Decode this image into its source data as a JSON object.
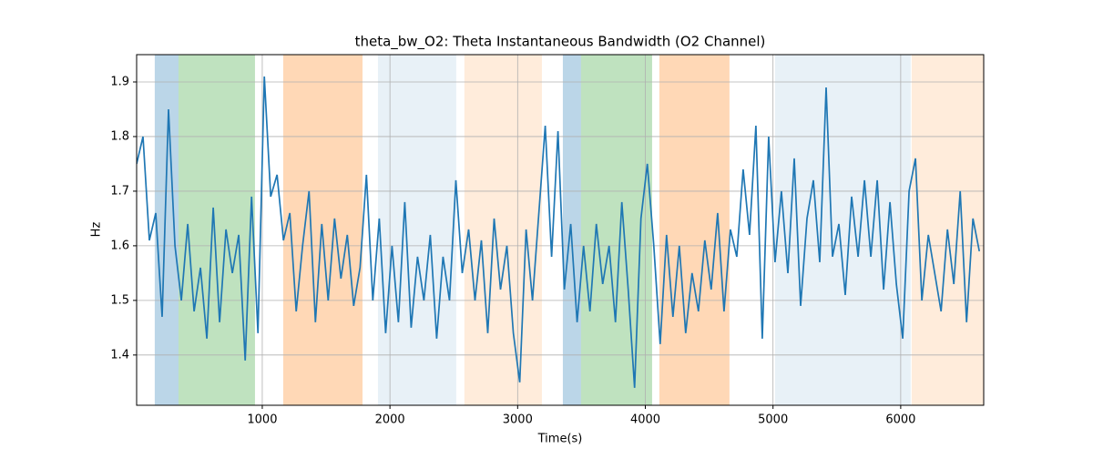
{
  "chart_data": {
    "type": "line",
    "title": "theta_bw_O2: Theta Instantaneous Bandwidth (O2 Channel)",
    "xlabel": "Time(s)",
    "ylabel": "Hz",
    "color": "#1f77b4",
    "x": [
      16,
      66,
      116,
      166,
      216,
      266,
      316,
      366,
      416,
      466,
      516,
      566,
      616,
      666,
      716,
      766,
      816,
      866,
      916,
      966,
      1016,
      1066,
      1116,
      1166,
      1216,
      1266,
      1316,
      1366,
      1416,
      1466,
      1516,
      1566,
      1616,
      1666,
      1716,
      1766,
      1816,
      1866,
      1916,
      1966,
      2016,
      2066,
      2116,
      2166,
      2216,
      2266,
      2316,
      2366,
      2416,
      2466,
      2516,
      2566,
      2616,
      2666,
      2716,
      2766,
      2816,
      2866,
      2916,
      2966,
      3016,
      3066,
      3116,
      3166,
      3216,
      3266,
      3316,
      3366,
      3416,
      3466,
      3516,
      3566,
      3616,
      3666,
      3716,
      3766,
      3816,
      3866,
      3916,
      3966,
      4016,
      4066,
      4116,
      4166,
      4216,
      4266,
      4316,
      4366,
      4416,
      4466,
      4516,
      4566,
      4616,
      4666,
      4716,
      4766,
      4816,
      4866,
      4916,
      4966,
      5016,
      5066,
      5116,
      5166,
      5216,
      5266,
      5316,
      5366,
      5416,
      5466,
      5516,
      5566,
      5616,
      5666,
      5716,
      5766,
      5816,
      5866,
      5916,
      5966,
      6016,
      6066,
      6116,
      6166,
      6216,
      6266,
      6316,
      6366,
      6416,
      6466,
      6516,
      6566,
      6616
    ],
    "values": [
      1.75,
      1.8,
      1.61,
      1.66,
      1.47,
      1.85,
      1.6,
      1.5,
      1.64,
      1.48,
      1.56,
      1.43,
      1.67,
      1.46,
      1.63,
      1.55,
      1.62,
      1.39,
      1.69,
      1.44,
      1.91,
      1.69,
      1.73,
      1.61,
      1.66,
      1.48,
      1.6,
      1.7,
      1.46,
      1.64,
      1.5,
      1.65,
      1.54,
      1.62,
      1.49,
      1.56,
      1.73,
      1.5,
      1.65,
      1.44,
      1.6,
      1.46,
      1.68,
      1.45,
      1.58,
      1.5,
      1.62,
      1.43,
      1.58,
      1.5,
      1.72,
      1.55,
      1.63,
      1.5,
      1.61,
      1.44,
      1.65,
      1.52,
      1.6,
      1.44,
      1.35,
      1.63,
      1.5,
      1.66,
      1.82,
      1.58,
      1.81,
      1.52,
      1.64,
      1.46,
      1.6,
      1.48,
      1.64,
      1.53,
      1.6,
      1.46,
      1.68,
      1.52,
      1.34,
      1.65,
      1.75,
      1.6,
      1.42,
      1.62,
      1.47,
      1.6,
      1.44,
      1.55,
      1.48,
      1.61,
      1.52,
      1.66,
      1.48,
      1.63,
      1.58,
      1.74,
      1.62,
      1.82,
      1.43,
      1.8,
      1.57,
      1.7,
      1.55,
      1.76,
      1.49,
      1.65,
      1.72,
      1.57,
      1.89,
      1.58,
      1.64,
      1.51,
      1.69,
      1.58,
      1.72,
      1.58,
      1.72,
      1.52,
      1.68,
      1.53,
      1.43,
      1.7,
      1.76,
      1.5,
      1.62,
      1.55,
      1.48,
      1.63,
      1.53,
      1.7,
      1.46,
      1.65,
      1.59
    ],
    "spans": [
      {
        "start": 158,
        "end": 344,
        "color": "#1f77b4",
        "alpha": 0.3
      },
      {
        "start": 344,
        "end": 943,
        "color": "#2ca02c",
        "alpha": 0.3
      },
      {
        "start": 1164,
        "end": 1785,
        "color": "#ff7f0e",
        "alpha": 0.3
      },
      {
        "start": 1906,
        "end": 2519,
        "color": "#1f77b4",
        "alpha": 0.1
      },
      {
        "start": 2583,
        "end": 3190,
        "color": "#ff7f0e",
        "alpha": 0.15
      },
      {
        "start": 3354,
        "end": 3496,
        "color": "#1f77b4",
        "alpha": 0.3
      },
      {
        "start": 3496,
        "end": 4053,
        "color": "#2ca02c",
        "alpha": 0.3
      },
      {
        "start": 4110,
        "end": 4659,
        "color": "#ff7f0e",
        "alpha": 0.3
      },
      {
        "start": 5016,
        "end": 6078,
        "color": "#1f77b4",
        "alpha": 0.1
      },
      {
        "start": 6086,
        "end": 6649,
        "color": "#ff7f0e",
        "alpha": 0.15
      }
    ],
    "xlim": [
      16,
      6650
    ],
    "ylim": [
      1.308,
      1.95
    ],
    "xticks": [
      1000,
      2000,
      3000,
      4000,
      5000,
      6000
    ],
    "yticks": [
      1.4,
      1.5,
      1.6,
      1.7,
      1.8,
      1.9
    ],
    "grid": true
  }
}
